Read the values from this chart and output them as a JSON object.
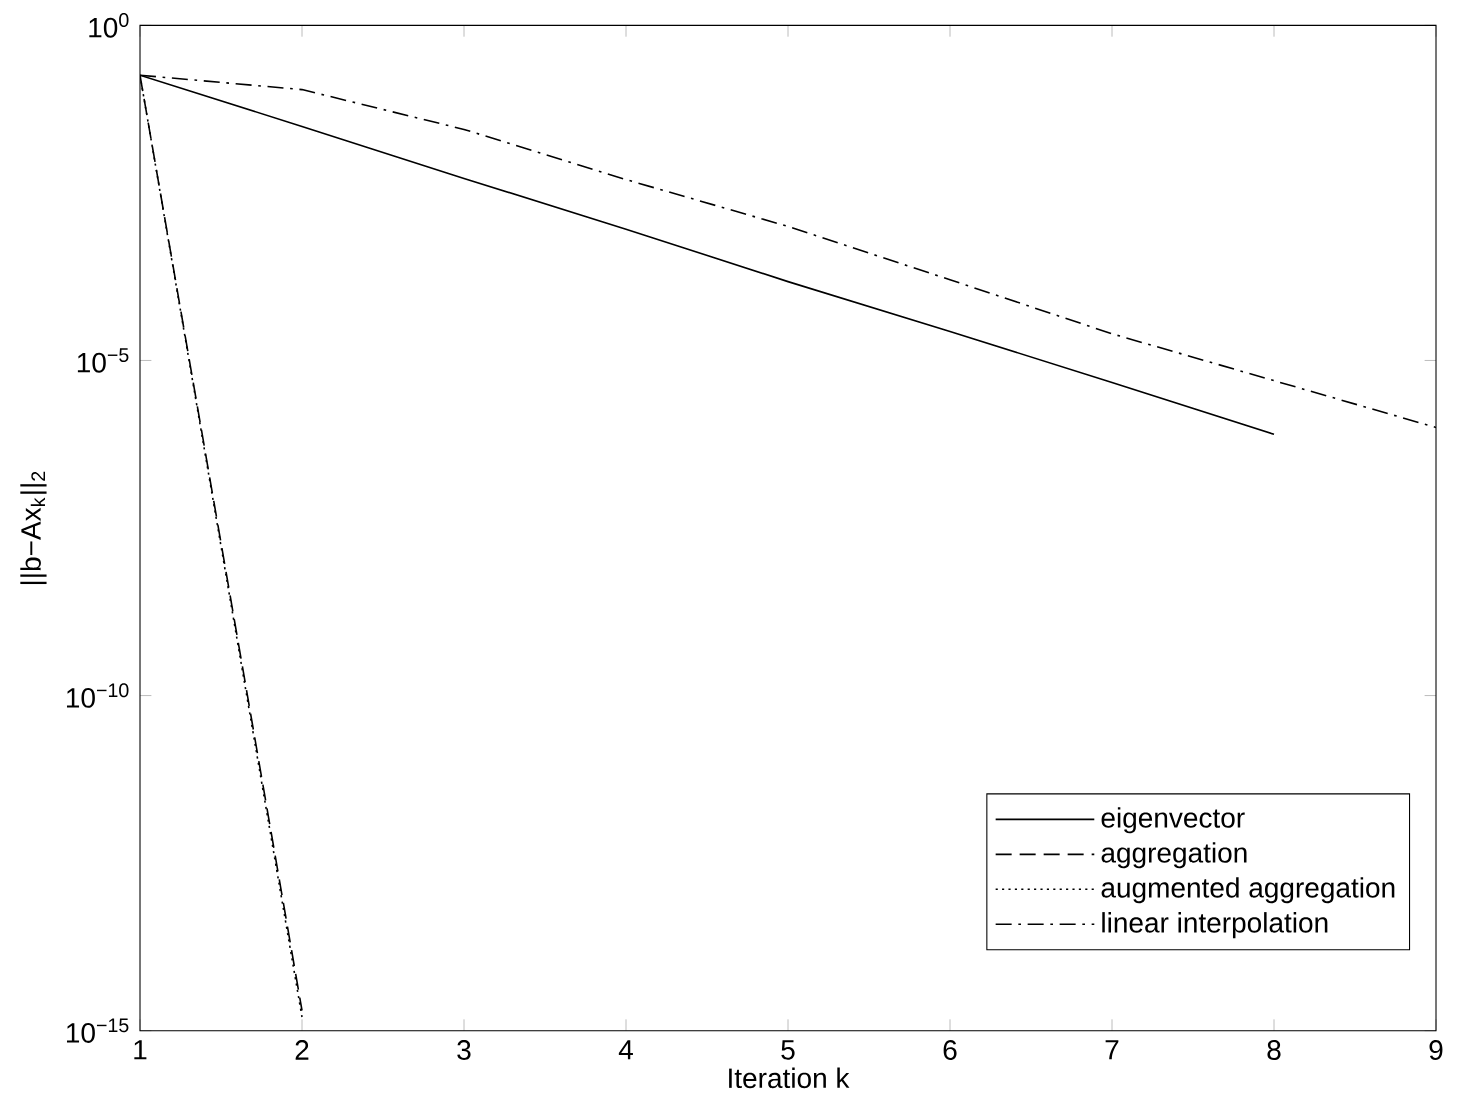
{
  "chart_data": {
    "type": "line",
    "xlabel": "Iteration k",
    "ylabel": "||b−Ax$_{k}$||$_{2}$",
    "log": "y",
    "xlim": [
      1,
      9
    ],
    "ylim": [
      1e-15,
      1
    ],
    "xticks": [
      1,
      2,
      3,
      4,
      5,
      6,
      7,
      8,
      9
    ],
    "yticks": [
      {
        "value": 1e-15,
        "label": "10$^{−15}$"
      },
      {
        "value": 1e-10,
        "label": "10$^{−10}$"
      },
      {
        "value": 1e-05,
        "label": "10$^{−5}$"
      },
      {
        "value": 1,
        "label": "10$^{0}$"
      }
    ],
    "grid": false,
    "legend": "bottom right",
    "marker": "none",
    "series": [
      {
        "name": "eigenvector",
        "color": "#000000",
        "line_style": "solid",
        "x": [
          1,
          2,
          3,
          4,
          5,
          6,
          7,
          8
        ],
        "values": [
          0.18,
          0.031,
          0.0052,
          0.00091,
          0.00015,
          2.7e-05,
          4.7e-06,
          7.9e-07
        ]
      },
      {
        "name": "aggregation",
        "color": "#000000",
        "line_style": "dashed",
        "x": [
          1,
          2
        ],
        "values": [
          0.18,
          2e-15
        ]
      },
      {
        "name": "augmented aggregation",
        "color": "#000000",
        "line_style": "dotted",
        "x": [
          1,
          2
        ],
        "values": [
          0.18,
          1.6e-15
        ]
      },
      {
        "name": "linear interpolation",
        "color": "#000000",
        "line_style": "dashdot",
        "x": [
          1,
          2,
          3,
          4,
          5,
          6,
          7,
          8,
          9
        ],
        "values": [
          0.18,
          0.11,
          0.028,
          0.005,
          0.001,
          0.00016,
          2.5e-05,
          5e-06,
          1e-06
        ]
      }
    ]
  }
}
